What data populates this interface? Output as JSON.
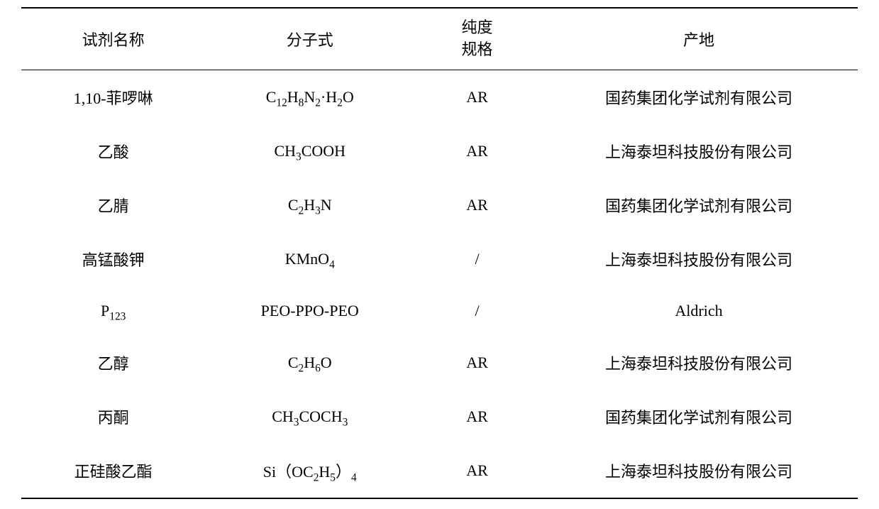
{
  "table": {
    "type": "table",
    "background_color": "#ffffff",
    "text_color": "#000000",
    "border_color": "#000000",
    "font_size": 22,
    "font_family": "SimSun",
    "columns": [
      {
        "key": "name",
        "label": "试剂名称",
        "width": "22%",
        "align": "center"
      },
      {
        "key": "formula",
        "label": "分子式",
        "width": "25%",
        "align": "center"
      },
      {
        "key": "purity",
        "label_line1": "纯度",
        "label_line2": "规格",
        "width": "15%",
        "align": "center"
      },
      {
        "key": "origin",
        "label": "产地",
        "width": "38%",
        "align": "center"
      }
    ],
    "rows": [
      {
        "name": "1,10-菲啰啉",
        "formula_html": "C<sub>12</sub>H<sub>8</sub>N<sub>2</sub>·H<sub>2</sub>O",
        "purity": "AR",
        "origin": "国药集团化学试剂有限公司"
      },
      {
        "name": "乙酸",
        "formula_html": "CH<sub>3</sub>COOH",
        "purity": "AR",
        "origin": "上海泰坦科技股份有限公司"
      },
      {
        "name": "乙腈",
        "formula_html": "C<sub>2</sub>H<sub>3</sub>N",
        "purity": "AR",
        "origin": "国药集团化学试剂有限公司"
      },
      {
        "name": "高锰酸钾",
        "formula_html": "KMnO<sub>4</sub>",
        "purity": "/",
        "origin": "上海泰坦科技股份有限公司"
      },
      {
        "name_html": "P<sub>123</sub>",
        "formula_html": "PEO-PPO-PEO",
        "purity": "/",
        "origin": "Aldrich"
      },
      {
        "name": "乙醇",
        "formula_html": "C<sub>2</sub>H<sub>6</sub>O",
        "purity": "AR",
        "origin": "上海泰坦科技股份有限公司"
      },
      {
        "name": "丙酮",
        "formula_html": "CH<sub>3</sub>COCH<sub>3</sub>",
        "purity": "AR",
        "origin": "国药集团化学试剂有限公司"
      },
      {
        "name": "正硅酸乙酯",
        "formula_html": "Si（OC<sub>2</sub>H<sub>5</sub>）<sub>4</sub>",
        "purity": "AR",
        "origin": "上海泰坦科技股份有限公司"
      }
    ]
  }
}
